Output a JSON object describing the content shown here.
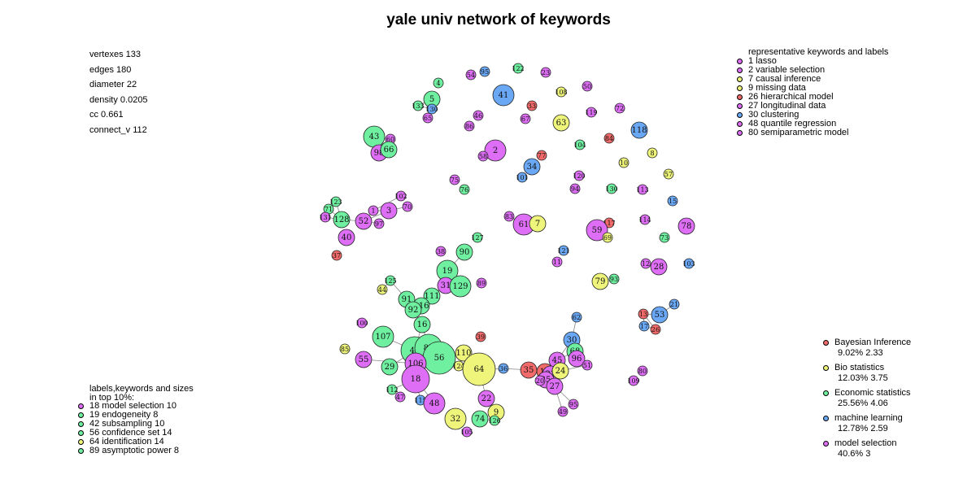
{
  "title": "yale univ network of keywords",
  "stats": [
    "vertexes 133",
    "edges 180",
    "diameter 22",
    "density 0.0205",
    "cc 0.661",
    "connect_v 112"
  ],
  "colors": {
    "bayesian": "#f26a6a",
    "bio": "#eef57a",
    "economic": "#6ef0a0",
    "ml": "#6aa8f5",
    "model": "#dd6ef5"
  },
  "rep_legend": {
    "title": "representative keywords and labels",
    "items": [
      {
        "text": "1 lasso",
        "color": "#dd6ef5"
      },
      {
        "text": "2 variable selection",
        "color": "#dd6ef5"
      },
      {
        "text": "7 causal inference",
        "color": "#eef57a"
      },
      {
        "text": "9 missing data",
        "color": "#eef57a"
      },
      {
        "text": "26 hierarchical model",
        "color": "#f26a6a"
      },
      {
        "text": "27 longitudinal data",
        "color": "#dd6ef5"
      },
      {
        "text": "30 clustering",
        "color": "#6aa8f5"
      },
      {
        "text": "48 quantile regression",
        "color": "#dd6ef5"
      },
      {
        "text": "80 semiparametric model",
        "color": "#dd6ef5"
      }
    ]
  },
  "top_legend": {
    "title1": "labels,keywords and sizes",
    "title2": "in top 10%:",
    "items": [
      {
        "text": "18 model selection 10",
        "color": "#dd6ef5"
      },
      {
        "text": "19 endogeneity 8",
        "color": "#6ef0a0"
      },
      {
        "text": "42 subsampling 10",
        "color": "#6ef0a0"
      },
      {
        "text": "56 confidence set 14",
        "color": "#6ef0a0"
      },
      {
        "text": "64 identification 14",
        "color": "#eef57a"
      },
      {
        "text": "89 asymptotic power 8",
        "color": "#6ef0a0"
      }
    ]
  },
  "cat_legend": [
    {
      "name": "Bayesian Inference",
      "stats": "9.02% 2.33",
      "color": "#f26a6a"
    },
    {
      "name": "Bio statistics",
      "stats": "12.03% 3.75",
      "color": "#eef57a"
    },
    {
      "name": "Economic statistics",
      "stats": "25.56% 4.06",
      "color": "#6ef0a0"
    },
    {
      "name": "machine learning",
      "stats": "12.78% 2.59",
      "color": "#6aa8f5"
    },
    {
      "name": "model selection",
      "stats": "40.6% 3",
      "color": "#dd6ef5"
    }
  ],
  "nodes": [
    {
      "label": "4",
      "cat": "economic",
      "size": 1
    },
    {
      "label": "54",
      "cat": "model",
      "size": 1
    },
    {
      "label": "95",
      "cat": "ml",
      "size": 1
    },
    {
      "label": "122",
      "cat": "economic",
      "size": 1
    },
    {
      "label": "23",
      "cat": "model",
      "size": 1
    },
    {
      "label": "41",
      "cat": "ml",
      "size": 3
    },
    {
      "label": "108",
      "cat": "bio",
      "size": 1
    },
    {
      "label": "50",
      "cat": "model",
      "size": 1
    },
    {
      "label": "5",
      "cat": "economic",
      "size": 2
    },
    {
      "label": "133",
      "cat": "economic",
      "size": 1
    },
    {
      "label": "130",
      "cat": "ml",
      "size": 1
    },
    {
      "label": "65",
      "cat": "model",
      "size": 1
    },
    {
      "label": "46",
      "cat": "model",
      "size": 1
    },
    {
      "label": "86",
      "cat": "model",
      "size": 1
    },
    {
      "label": "33",
      "cat": "bayesian",
      "size": 1
    },
    {
      "label": "67",
      "cat": "model",
      "size": 1
    },
    {
      "label": "63",
      "cat": "bio",
      "size": 2
    },
    {
      "label": "119",
      "cat": "model",
      "size": 1
    },
    {
      "label": "72",
      "cat": "model",
      "size": 1
    },
    {
      "label": "118",
      "cat": "ml",
      "size": 2
    },
    {
      "label": "43",
      "cat": "economic",
      "size": 3
    },
    {
      "label": "76",
      "cat": "economic",
      "size": 1
    },
    {
      "label": "60",
      "cat": "model",
      "size": 1
    },
    {
      "label": "98",
      "cat": "model",
      "size": 2
    },
    {
      "label": "66",
      "cat": "economic",
      "size": 2
    },
    {
      "label": "2",
      "cat": "model",
      "size": 3
    },
    {
      "label": "58",
      "cat": "model",
      "size": 1
    },
    {
      "label": "77",
      "cat": "bayesian",
      "size": 1
    },
    {
      "label": "104",
      "cat": "economic",
      "size": 1
    },
    {
      "label": "84",
      "cat": "bayesian",
      "size": 1
    },
    {
      "label": "8",
      "cat": "bio",
      "size": 1
    },
    {
      "label": "34",
      "cat": "ml",
      "size": 2
    },
    {
      "label": "10",
      "cat": "bio",
      "size": 1
    },
    {
      "label": "57",
      "cat": "bio",
      "size": 1
    },
    {
      "label": "101",
      "cat": "ml",
      "size": 1
    },
    {
      "label": "120",
      "cat": "model",
      "size": 1
    },
    {
      "label": "75",
      "cat": "model",
      "size": 1
    },
    {
      "label": "76b",
      "cat": "economic",
      "size": 1
    },
    {
      "label": "94",
      "cat": "model",
      "size": 1
    },
    {
      "label": "130b",
      "cat": "economic",
      "size": 1
    },
    {
      "label": "113",
      "cat": "model",
      "size": 1
    },
    {
      "label": "15",
      "cat": "ml",
      "size": 1
    },
    {
      "label": "102",
      "cat": "model",
      "size": 1
    },
    {
      "label": "123",
      "cat": "economic",
      "size": 1
    },
    {
      "label": "70",
      "cat": "model",
      "size": 1
    },
    {
      "label": "71",
      "cat": "economic",
      "size": 1
    },
    {
      "label": "1",
      "cat": "model",
      "size": 1
    },
    {
      "label": "3",
      "cat": "model",
      "size": 2
    },
    {
      "label": "131",
      "cat": "model",
      "size": 1
    },
    {
      "label": "128",
      "cat": "economic",
      "size": 2
    },
    {
      "label": "52",
      "cat": "model",
      "size": 2
    },
    {
      "label": "97",
      "cat": "model",
      "size": 1
    },
    {
      "label": "83",
      "cat": "model",
      "size": 1
    },
    {
      "label": "61",
      "cat": "model",
      "size": 3
    },
    {
      "label": "7",
      "cat": "bio",
      "size": 2
    },
    {
      "label": "114",
      "cat": "model",
      "size": 1
    },
    {
      "label": "78",
      "cat": "model",
      "size": 2
    },
    {
      "label": "40",
      "cat": "model",
      "size": 2
    },
    {
      "label": "127",
      "cat": "economic",
      "size": 1
    },
    {
      "label": "117",
      "cat": "bayesian",
      "size": 1
    },
    {
      "label": "59",
      "cat": "model",
      "size": 3
    },
    {
      "label": "69",
      "cat": "bio",
      "size": 1
    },
    {
      "label": "73",
      "cat": "economic",
      "size": 1
    },
    {
      "label": "37",
      "cat": "bayesian",
      "size": 1
    },
    {
      "label": "38",
      "cat": "model",
      "size": 1
    },
    {
      "label": "90",
      "cat": "economic",
      "size": 2
    },
    {
      "label": "121",
      "cat": "ml",
      "size": 1
    },
    {
      "label": "11",
      "cat": "model",
      "size": 1
    },
    {
      "label": "12",
      "cat": "model",
      "size": 1
    },
    {
      "label": "28",
      "cat": "model",
      "size": 2
    },
    {
      "label": "103",
      "cat": "ml",
      "size": 1
    },
    {
      "label": "19",
      "cat": "economic",
      "size": 3
    },
    {
      "label": "125",
      "cat": "economic",
      "size": 1
    },
    {
      "label": "31",
      "cat": "model",
      "size": 2
    },
    {
      "label": "129",
      "cat": "economic",
      "size": 3
    },
    {
      "label": "89",
      "cat": "model",
      "size": 1
    },
    {
      "label": "79",
      "cat": "bio",
      "size": 2
    },
    {
      "label": "93",
      "cat": "economic",
      "size": 1
    },
    {
      "label": "44",
      "cat": "bio",
      "size": 1
    },
    {
      "label": "91",
      "cat": "economic",
      "size": 2
    },
    {
      "label": "111",
      "cat": "economic",
      "size": 2
    },
    {
      "label": "116",
      "cat": "economic",
      "size": 2
    },
    {
      "label": "92",
      "cat": "economic",
      "size": 2
    },
    {
      "label": "62",
      "cat": "ml",
      "size": 1
    },
    {
      "label": "13",
      "cat": "bayesian",
      "size": 1
    },
    {
      "label": "53",
      "cat": "ml",
      "size": 2
    },
    {
      "label": "21",
      "cat": "ml",
      "size": 1
    },
    {
      "label": "17",
      "cat": "ml",
      "size": 1
    },
    {
      "label": "26",
      "cat": "bayesian",
      "size": 1
    },
    {
      "label": "100",
      "cat": "model",
      "size": 1
    },
    {
      "label": "16",
      "cat": "economic",
      "size": 2
    },
    {
      "label": "107",
      "cat": "economic",
      "size": 3
    },
    {
      "label": "39",
      "cat": "bayesian",
      "size": 1
    },
    {
      "label": "30",
      "cat": "ml",
      "size": 2
    },
    {
      "label": "85",
      "cat": "bio",
      "size": 1
    },
    {
      "label": "42",
      "cat": "economic",
      "size": 4
    },
    {
      "label": "89b",
      "cat": "economic",
      "size": 4
    },
    {
      "label": "110",
      "cat": "bio",
      "size": 2
    },
    {
      "label": "56",
      "cat": "economic",
      "size": 5
    },
    {
      "label": "55",
      "cat": "model",
      "size": 2
    },
    {
      "label": "106",
      "cat": "model",
      "size": 3
    },
    {
      "label": "68",
      "cat": "economic",
      "size": 2
    },
    {
      "label": "96",
      "cat": "model",
      "size": 2
    },
    {
      "label": "45",
      "cat": "model",
      "size": 2
    },
    {
      "label": "51",
      "cat": "model",
      "size": 1
    },
    {
      "label": "29",
      "cat": "economic",
      "size": 2
    },
    {
      "label": "124",
      "cat": "bio",
      "size": 1
    },
    {
      "label": "64",
      "cat": "bio",
      "size": 5
    },
    {
      "label": "36",
      "cat": "ml",
      "size": 1
    },
    {
      "label": "35",
      "cat": "bayesian",
      "size": 2
    },
    {
      "label": "14",
      "cat": "bayesian",
      "size": 2
    },
    {
      "label": "22b",
      "cat": "model",
      "size": 2
    },
    {
      "label": "24",
      "cat": "bio",
      "size": 2
    },
    {
      "label": "80",
      "cat": "model",
      "size": 1
    },
    {
      "label": "18",
      "cat": "model",
      "size": 4
    },
    {
      "label": "112",
      "cat": "economic",
      "size": 1
    },
    {
      "label": "25",
      "cat": "model",
      "size": 2
    },
    {
      "label": "27",
      "cat": "model",
      "size": 2
    },
    {
      "label": "109",
      "cat": "model",
      "size": 1
    },
    {
      "label": "47",
      "cat": "model",
      "size": 1
    },
    {
      "label": "115",
      "cat": "ml",
      "size": 1
    },
    {
      "label": "48",
      "cat": "model",
      "size": 3
    },
    {
      "label": "22",
      "cat": "model",
      "size": 2
    },
    {
      "label": "95b",
      "cat": "model",
      "size": 1
    },
    {
      "label": "49",
      "cat": "model",
      "size": 1
    },
    {
      "label": "9",
      "cat": "bio",
      "size": 2
    },
    {
      "label": "32",
      "cat": "bio",
      "size": 3
    },
    {
      "label": "74",
      "cat": "economic",
      "size": 2
    },
    {
      "label": "126",
      "cat": "economic",
      "size": 1
    },
    {
      "label": "105",
      "cat": "model",
      "size": 1
    },
    {
      "label": "20",
      "cat": "model",
      "size": 1
    }
  ],
  "edges": [
    [
      "5",
      "133"
    ],
    [
      "5",
      "130"
    ],
    [
      "133",
      "130"
    ],
    [
      "130",
      "65"
    ],
    [
      "43",
      "60"
    ],
    [
      "43",
      "98"
    ],
    [
      "43",
      "66"
    ],
    [
      "60",
      "98"
    ],
    [
      "98",
      "66"
    ],
    [
      "60",
      "66"
    ],
    [
      "1",
      "3"
    ],
    [
      "1",
      "52"
    ],
    [
      "3",
      "52"
    ],
    [
      "52",
      "128"
    ],
    [
      "128",
      "123"
    ],
    [
      "128",
      "71"
    ],
    [
      "128",
      "131"
    ],
    [
      "52",
      "97"
    ],
    [
      "3",
      "70"
    ],
    [
      "1",
      "102"
    ],
    [
      "61",
      "7"
    ],
    [
      "61",
      "83"
    ],
    [
      "59",
      "117"
    ],
    [
      "59",
      "69"
    ],
    [
      "19",
      "90"
    ],
    [
      "19",
      "31"
    ],
    [
      "19",
      "129"
    ],
    [
      "31",
      "129"
    ],
    [
      "31",
      "111"
    ],
    [
      "111",
      "116"
    ],
    [
      "116",
      "91"
    ],
    [
      "91",
      "92"
    ],
    [
      "92",
      "116"
    ],
    [
      "91",
      "125"
    ],
    [
      "125",
      "44"
    ],
    [
      "92",
      "16"
    ],
    [
      "16",
      "89b"
    ],
    [
      "16",
      "42"
    ],
    [
      "42",
      "89b"
    ],
    [
      "42",
      "56"
    ],
    [
      "89b",
      "56"
    ],
    [
      "42",
      "106"
    ],
    [
      "89b",
      "106"
    ],
    [
      "106",
      "18"
    ],
    [
      "42",
      "107"
    ],
    [
      "42",
      "29"
    ],
    [
      "106",
      "55"
    ],
    [
      "18",
      "112"
    ],
    [
      "18",
      "115"
    ],
    [
      "56",
      "110"
    ],
    [
      "110",
      "124"
    ],
    [
      "124",
      "64"
    ],
    [
      "64",
      "36"
    ],
    [
      "36",
      "35"
    ],
    [
      "35",
      "14"
    ],
    [
      "14",
      "24"
    ],
    [
      "14",
      "45"
    ],
    [
      "45",
      "30"
    ],
    [
      "45",
      "68"
    ],
    [
      "30",
      "68"
    ],
    [
      "30",
      "62"
    ],
    [
      "68",
      "96"
    ],
    [
      "96",
      "51"
    ],
    [
      "14",
      "22b"
    ],
    [
      "22b",
      "25"
    ],
    [
      "25",
      "27"
    ],
    [
      "27",
      "95b"
    ],
    [
      "27",
      "49"
    ],
    [
      "24",
      "51"
    ],
    [
      "64",
      "22"
    ],
    [
      "22",
      "9"
    ],
    [
      "9",
      "126"
    ],
    [
      "74",
      "126"
    ],
    [
      "48",
      "18"
    ],
    [
      "13",
      "53"
    ],
    [
      "13",
      "17"
    ],
    [
      "13",
      "26"
    ],
    [
      "53",
      "21"
    ],
    [
      "17",
      "26"
    ]
  ]
}
